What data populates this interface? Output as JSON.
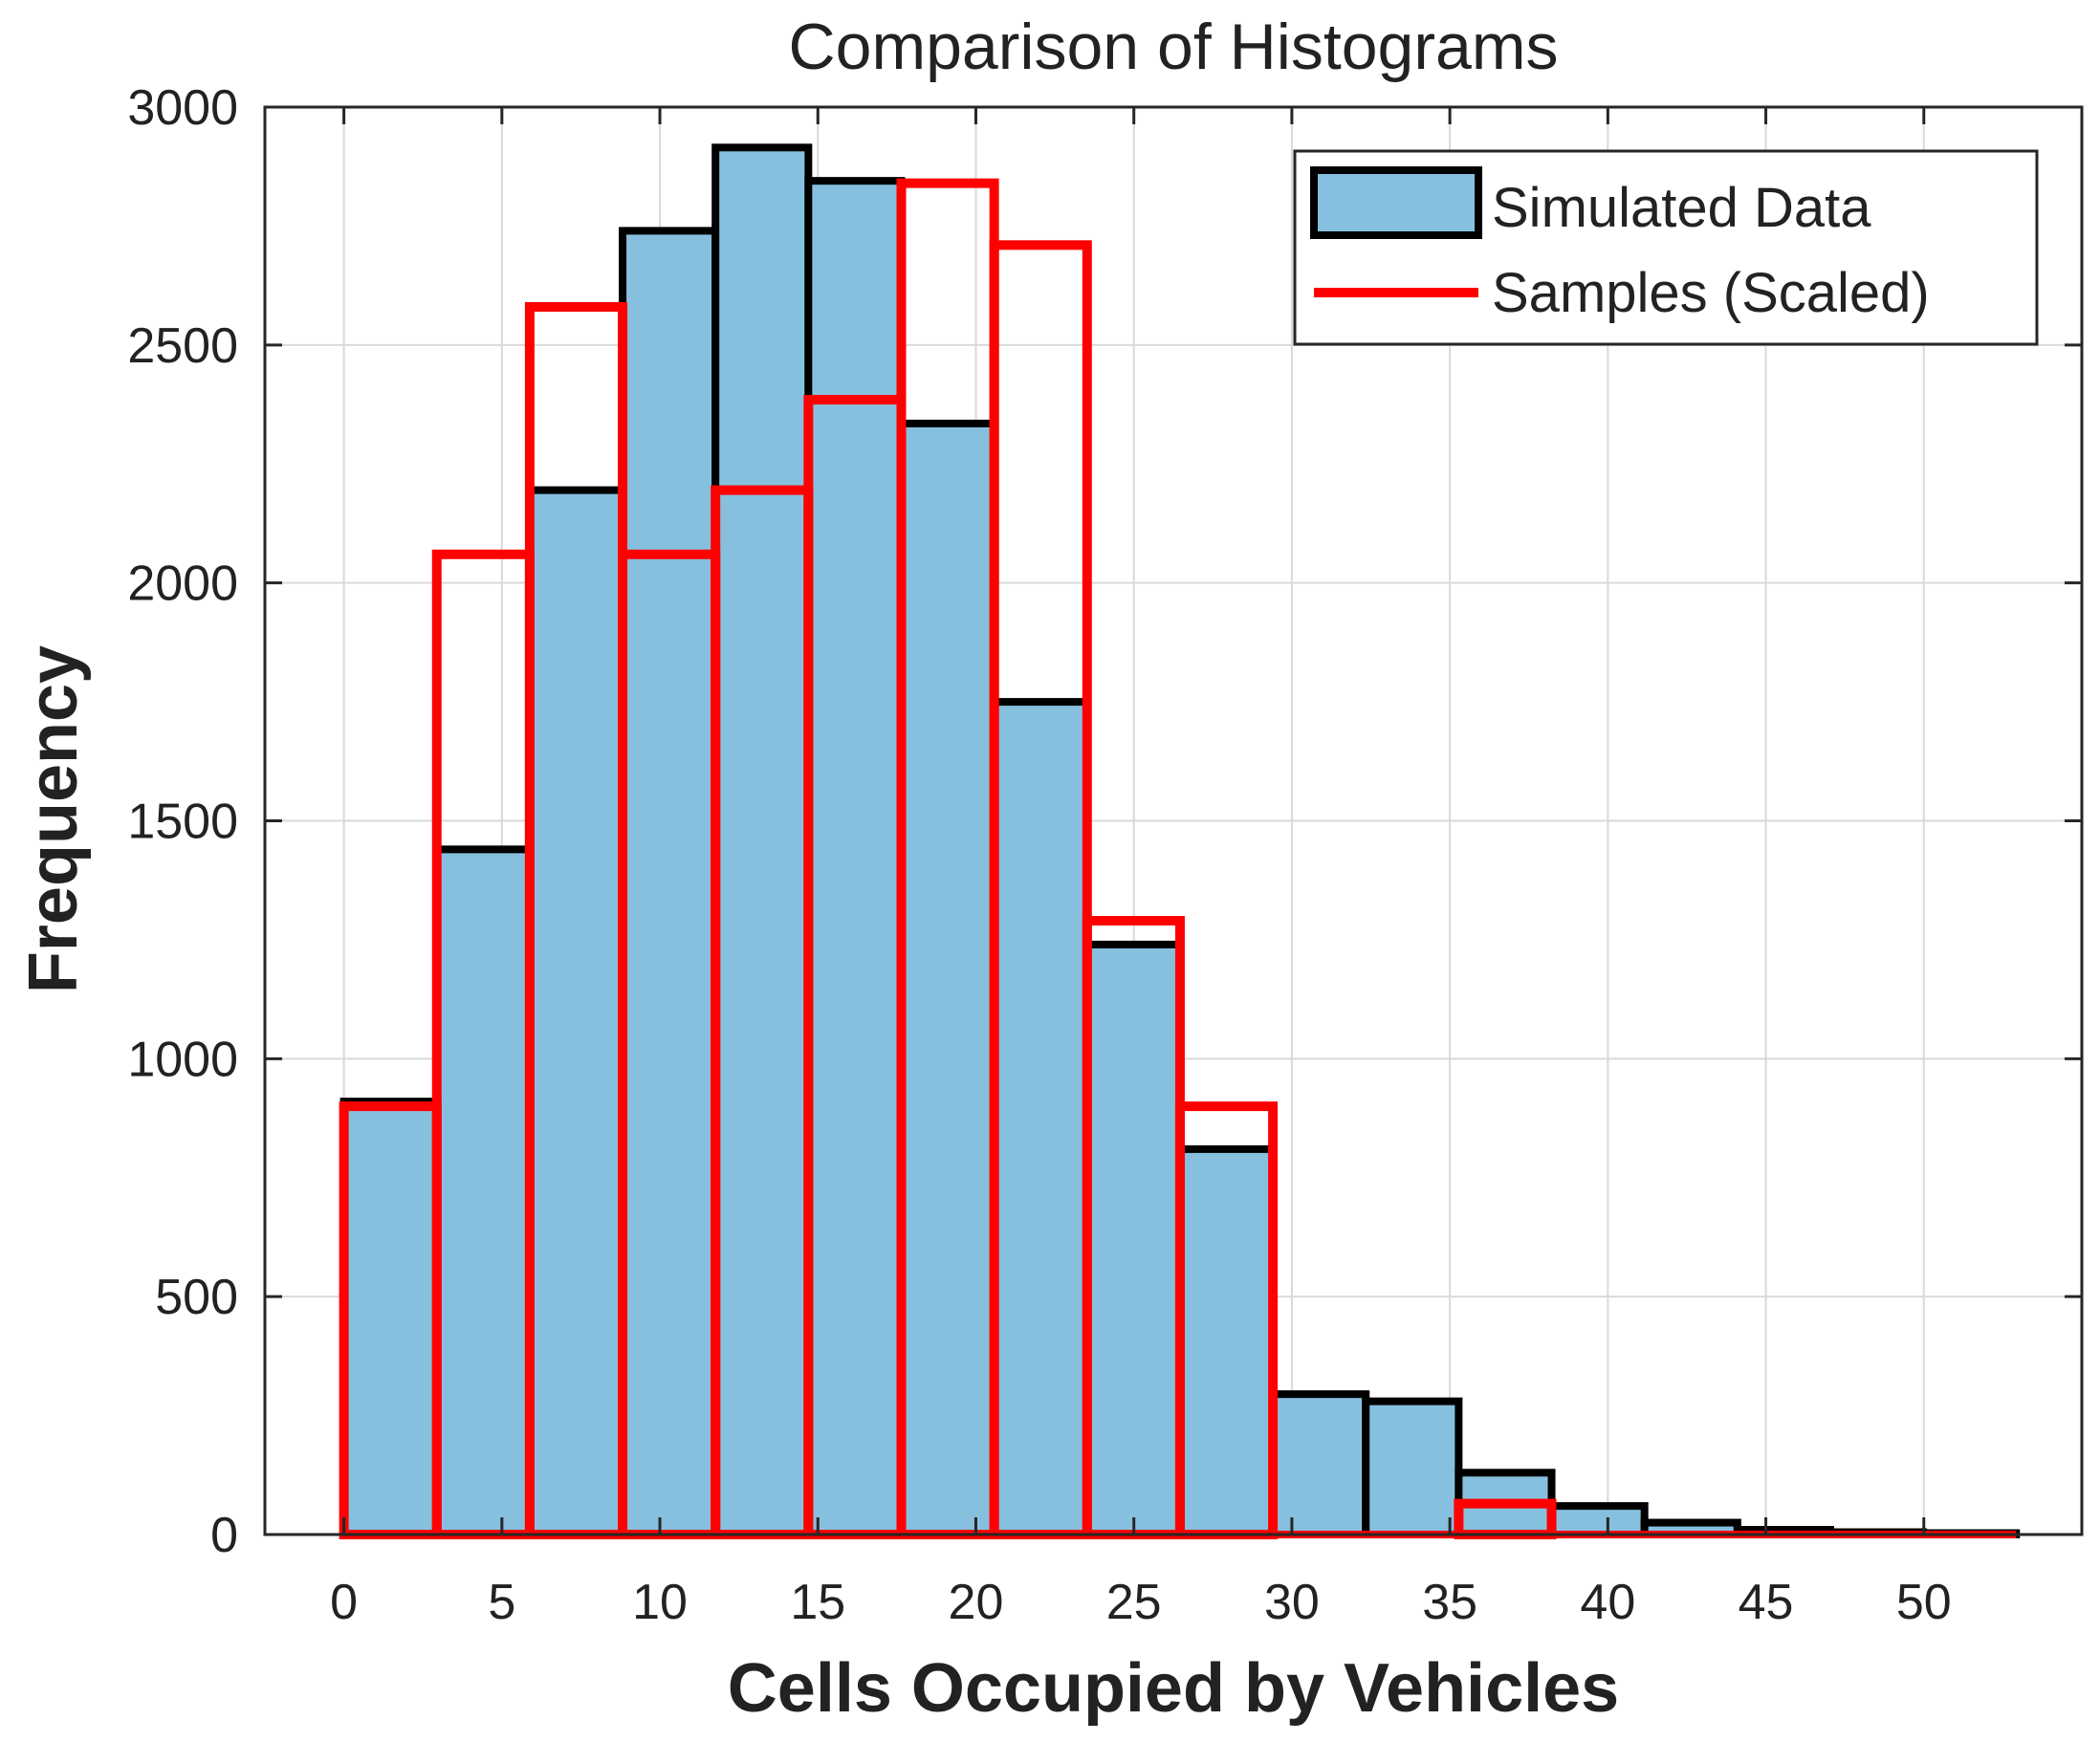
{
  "chart_data": {
    "type": "bar",
    "title": "Comparison of Histograms",
    "xlabel": "Cells Occupied by Vehicles",
    "ylabel": "Frequency",
    "xlim": [
      -2.5,
      55
    ],
    "ylim": [
      0,
      3000
    ],
    "xticks": [
      0,
      5,
      10,
      15,
      20,
      25,
      30,
      35,
      40,
      45,
      50
    ],
    "yticks": [
      0,
      500,
      1000,
      1500,
      2000,
      2500,
      3000
    ],
    "grid": true,
    "legend_position": "top-right",
    "bin_edges": [
      0,
      2.94,
      5.88,
      8.82,
      11.76,
      14.7,
      17.64,
      20.58,
      23.52,
      26.46,
      29.4,
      32.34,
      35.28,
      38.22,
      41.16,
      44.1,
      47.04,
      49.98,
      52.92
    ],
    "series": [
      {
        "name": "Simulated Data",
        "style": "filled",
        "values": [
          910,
          1440,
          2195,
          2740,
          2915,
          2845,
          2335,
          1750,
          1240,
          810,
          295,
          280,
          130,
          60,
          25,
          10,
          5,
          3
        ]
      },
      {
        "name": "Samples (Scaled)",
        "style": "outline",
        "values": [
          900,
          2060,
          2580,
          2060,
          2195,
          2385,
          2840,
          2710,
          1290,
          900,
          0,
          0,
          65,
          0,
          0,
          0,
          0,
          0
        ]
      }
    ],
    "colors": {
      "fill": "#87c0df",
      "edge": "#000000",
      "samples": "#ff0000",
      "grid": "#d9d9d9",
      "axis": "#262626"
    }
  }
}
